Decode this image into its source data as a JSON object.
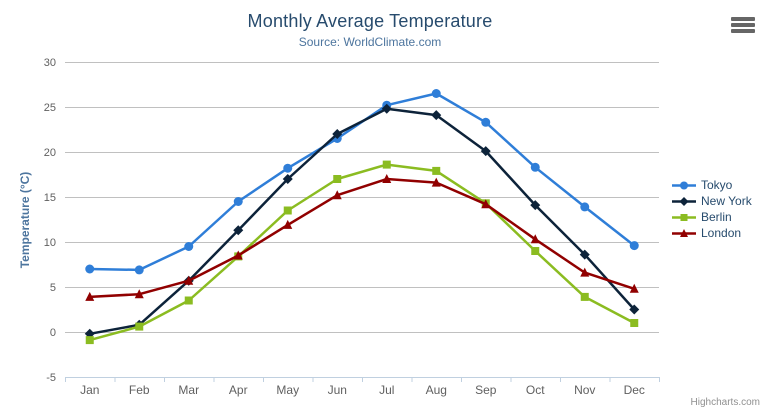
{
  "header": {
    "title": "Monthly Average Temperature",
    "subtitle": "Source: WorldClimate.com"
  },
  "credits_label": "Highcharts.com",
  "menu_icon": "hamburger-export-menu",
  "colors": {
    "title": "#274b6d",
    "subtitle": "#4d759e",
    "axis_title": "#4d759e",
    "tick_label": "#606060",
    "gridline": "#c0c0c0",
    "axis_line": "#c0d0e0",
    "legend_text": "#274b6d",
    "credits": "#909090"
  },
  "chart_data": {
    "type": "line",
    "title": "Monthly Average Temperature",
    "subtitle": "Source: WorldClimate.com",
    "xlabel": "",
    "ylabel": "Temperature (°C)",
    "ylim": [
      -5,
      30
    ],
    "ytick_step": 5,
    "yticks": [
      -5,
      0,
      5,
      10,
      15,
      20,
      25,
      30
    ],
    "grid": true,
    "legend_position": "right",
    "categories": [
      "Jan",
      "Feb",
      "Mar",
      "Apr",
      "May",
      "Jun",
      "Jul",
      "Aug",
      "Sep",
      "Oct",
      "Nov",
      "Dec"
    ],
    "series": [
      {
        "name": "Tokyo",
        "color": "#2f7ed8",
        "marker": "circle",
        "values": [
          7.0,
          6.9,
          9.5,
          14.5,
          18.2,
          21.5,
          25.2,
          26.5,
          23.3,
          18.3,
          13.9,
          9.6
        ]
      },
      {
        "name": "New York",
        "color": "#0d233a",
        "marker": "diamond",
        "values": [
          -0.2,
          0.8,
          5.7,
          11.3,
          17.0,
          22.0,
          24.8,
          24.1,
          20.1,
          14.1,
          8.6,
          2.5
        ]
      },
      {
        "name": "Berlin",
        "color": "#8bbc21",
        "marker": "square",
        "values": [
          -0.9,
          0.6,
          3.5,
          8.4,
          13.5,
          17.0,
          18.6,
          17.9,
          14.3,
          9.0,
          3.9,
          1.0
        ]
      },
      {
        "name": "London",
        "color": "#910000",
        "marker": "triangle",
        "values": [
          3.9,
          4.2,
          5.7,
          8.5,
          11.9,
          15.2,
          17.0,
          16.6,
          14.2,
          10.3,
          6.6,
          4.8
        ]
      }
    ]
  }
}
